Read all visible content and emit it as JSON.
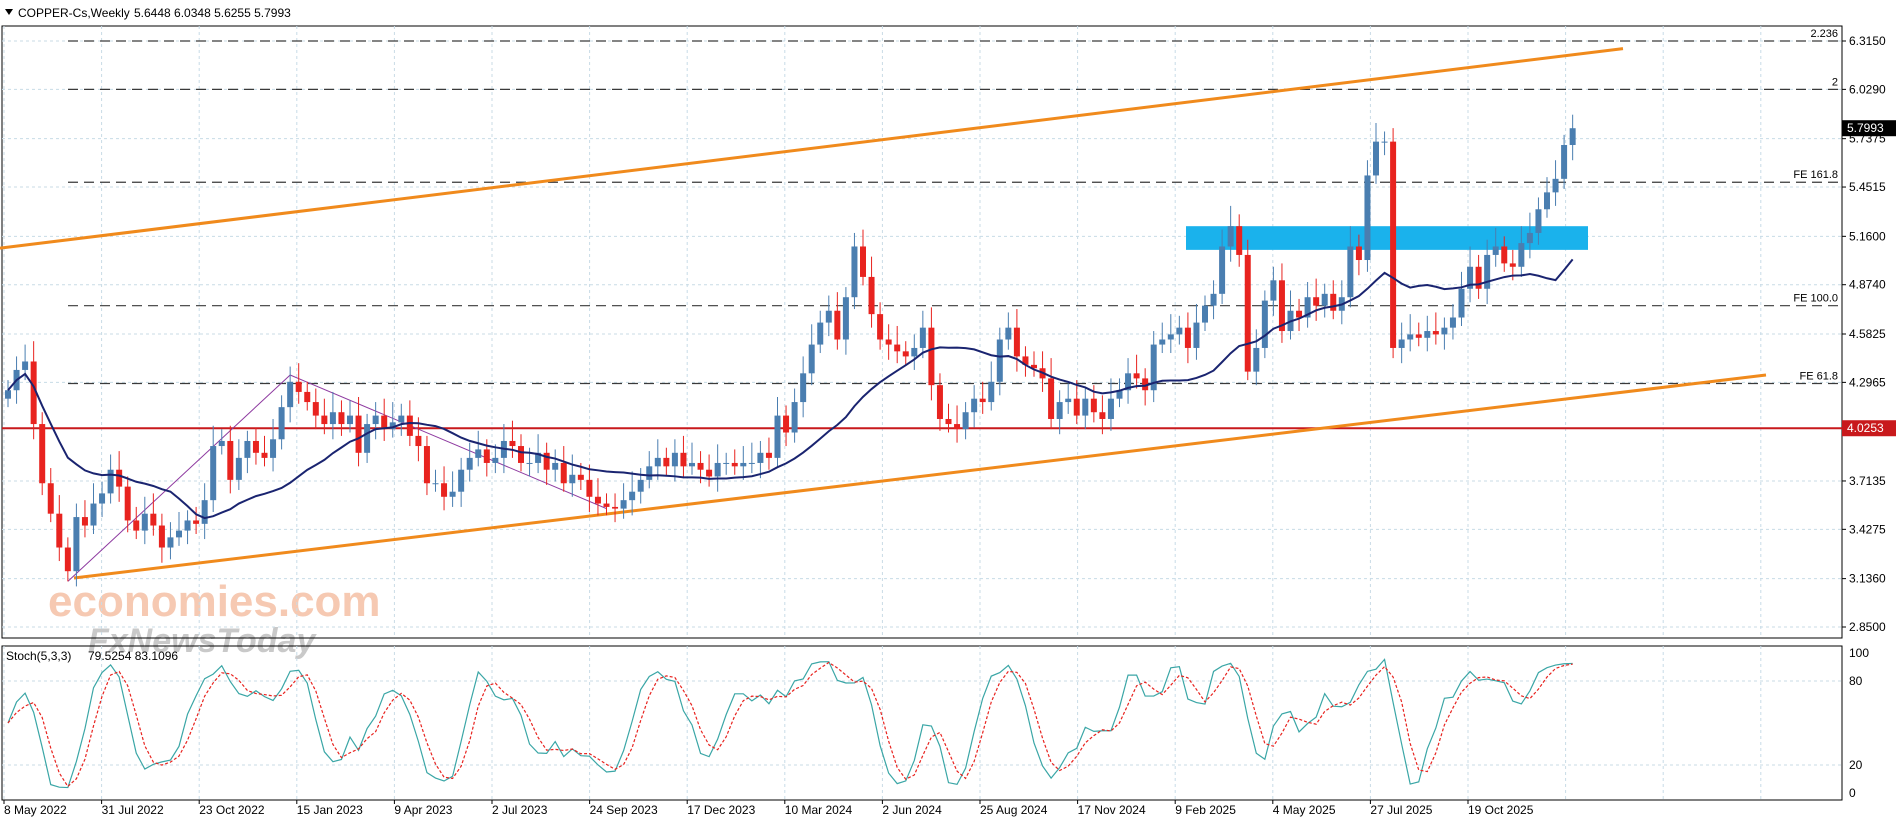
{
  "header": {
    "symbol_label": "COPPER-Cs,Weekly",
    "ohlc": "5.6448 6.0348 5.6255 5.7993"
  },
  "stoch": {
    "label": "Stoch(5,3,3)",
    "values": "79.5254 83.1096",
    "levels": [
      "100",
      "80",
      "20",
      "0"
    ]
  },
  "watermark": {
    "line1": "economies.com",
    "line2": "FxNewsToday"
  },
  "colors": {
    "background": "#ffffff",
    "grid": "#c8dbe6",
    "bull_candle": "#4a7eb0",
    "bear_candle": "#e8231f",
    "channel": "#f08a1c",
    "support_line": "#c8191c",
    "moving_average": "#1a2470",
    "fib_lines": "#3a3a3a",
    "resistance_zone": "#1ab2ec",
    "zigzag": "#8e3aa0",
    "stoch_main": "#3aa6a6",
    "stoch_signal": "#e8231f"
  },
  "chart_data": {
    "type": "candlestick",
    "title": "COPPER-Cs,Weekly",
    "y_ticks": [
      "6.3150",
      "6.0290",
      "5.7375",
      "5.4515",
      "5.1600",
      "4.8740",
      "4.5825",
      "4.2965",
      "4.0253",
      "3.7135",
      "3.4275",
      "3.1360",
      "2.8500"
    ],
    "ylim": [
      2.85,
      6.315
    ],
    "x_tick_labels": [
      "8 May 2022",
      "31 Jul 2022",
      "23 Oct 2022",
      "15 Jan 2023",
      "9 Apr 2023",
      "2 Jul 2023",
      "24 Sep 2023",
      "17 Dec 2023",
      "10 Mar 2024",
      "2 Jun 2024",
      "25 Aug 2024",
      "17 Nov 2024",
      "9 Feb 2025",
      "4 May 2025",
      "27 Jul 2025",
      "19 Oct 2025"
    ],
    "current_price": {
      "label": "5.7993",
      "value": 5.7993
    },
    "support_level": {
      "label": "4.0253",
      "value": 4.0253
    },
    "fib_levels": [
      {
        "label": "2.236",
        "value": 6.315
      },
      {
        "label": "2",
        "value": 6.029
      },
      {
        "label": "FE 161.8",
        "value": 5.48
      },
      {
        "label": "FE 100.0",
        "value": 4.75
      },
      {
        "label": "FE 61.8",
        "value": 4.29
      }
    ],
    "resistance_zone": {
      "low": 5.08,
      "high": 5.22
    },
    "close_series": [
      4.25,
      4.37,
      4.42,
      4.05,
      3.7,
      3.52,
      3.32,
      3.18,
      3.5,
      3.45,
      3.58,
      3.64,
      3.78,
      3.68,
      3.48,
      3.42,
      3.52,
      3.45,
      3.32,
      3.38,
      3.42,
      3.48,
      3.46,
      3.6,
      3.92,
      3.95,
      3.72,
      3.85,
      3.95,
      3.88,
      3.85,
      3.96,
      4.15,
      4.3,
      4.24,
      4.18,
      4.1,
      4.05,
      4.12,
      4.05,
      4.1,
      3.88,
      4.05,
      4.1,
      4.02,
      4.06,
      4.1,
      3.98,
      3.92,
      3.7,
      3.7,
      3.62,
      3.65,
      3.78,
      3.85,
      3.9,
      3.82,
      3.85,
      3.95,
      3.92,
      3.82,
      3.82,
      3.88,
      3.78,
      3.82,
      3.7,
      3.75,
      3.72,
      3.62,
      3.58,
      3.56,
      3.55,
      3.6,
      3.65,
      3.72,
      3.8,
      3.85,
      3.8,
      3.88,
      3.8,
      3.82,
      3.78,
      3.74,
      3.82,
      3.82,
      3.8,
      3.82,
      3.82,
      3.88,
      3.85,
      4.1,
      4.0,
      4.18,
      4.35,
      4.52,
      4.65,
      4.72,
      4.55,
      4.8,
      5.1,
      4.92,
      4.7,
      4.55,
      4.52,
      4.48,
      4.45,
      4.5,
      4.62,
      4.28,
      4.08,
      4.05,
      4.02,
      4.12,
      4.2,
      4.18,
      4.3,
      4.55,
      4.62,
      4.45,
      4.4,
      4.38,
      4.32,
      4.08,
      4.18,
      4.2,
      4.1,
      4.2,
      4.12,
      4.08,
      4.2,
      4.25,
      4.35,
      4.32,
      4.25,
      4.52,
      4.55,
      4.58,
      4.62,
      4.5,
      4.65,
      4.75,
      4.82,
      5.1,
      5.22,
      5.05,
      4.36,
      4.5,
      4.78,
      4.9,
      4.6,
      4.72,
      4.68,
      4.8,
      4.75,
      4.82,
      4.72,
      4.8,
      5.1,
      5.02,
      5.52,
      5.72,
      5.72,
      4.5,
      4.55,
      4.58,
      4.56,
      4.6,
      4.58,
      4.62,
      4.68,
      4.85,
      4.98,
      4.85,
      5.05,
      5.1,
      5.0,
      4.98,
      5.12,
      5.18,
      5.32,
      5.42,
      5.5,
      5.7,
      5.7993
    ]
  }
}
